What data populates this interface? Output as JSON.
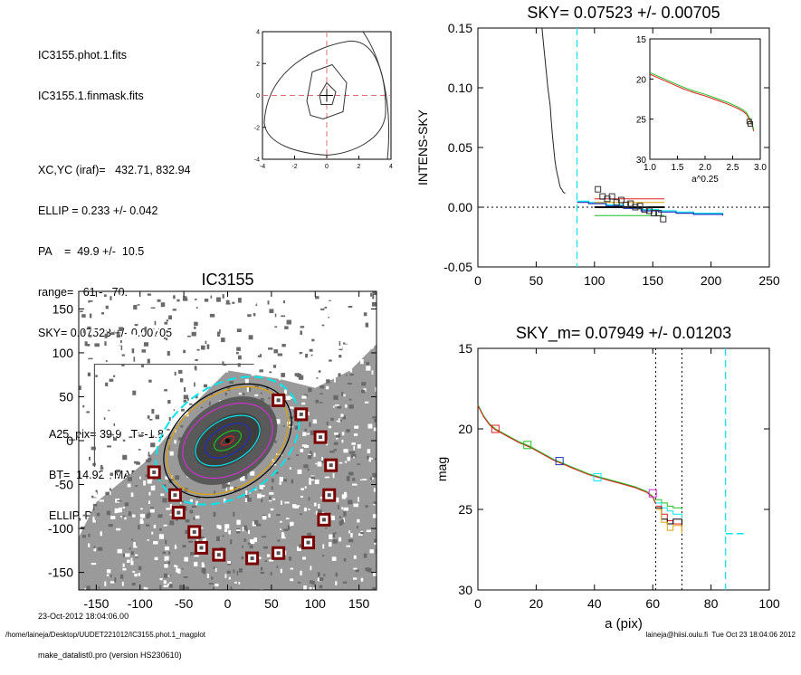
{
  "info": {
    "file1": "IC3155.phot.1.fits",
    "file2": "IC3155.1.finmask.fits",
    "lines": [
      "XC,YC (iraf)=   432.71, 832.94",
      "ELLIP = 0.233 +/- 0.042",
      "PA    =  49.9 +/-  10.5",
      "range=   61.-   70.",
      "SKY= 0.07523 +/- 0.00705"
    ],
    "lines2": [
      "A25_pix= 39.9   T=-1.8",
      "BT=  14.92   MABS=-17.83",
      "ELLIP, PA= 0.542   34.0"
    ],
    "date": "23-Oct-2012 18:04:06.00",
    "program": "make_datalist0.pro (version HS230610)"
  },
  "footer": {
    "path": "/home/laineja/Desktop/UUDET221012/IC3155.phot.1_magplot",
    "user": "laineja@hiisi.oulu.fi  Tue Oct 23 18:04:06 2012"
  },
  "colors": {
    "cyan": "#00e5ee",
    "red": "#e02020",
    "green": "#20c020",
    "blue": "#2030c0",
    "orange": "#e0a000",
    "magenta": "#d030d0",
    "gray": "#8a8a8a",
    "darkred": "#7a0000"
  },
  "chart_data": [
    {
      "id": "contour",
      "type": "contour",
      "xlim": [
        -4,
        4
      ],
      "ylim": [
        -4,
        4
      ],
      "xticks": [
        -4,
        -2,
        0,
        2,
        4
      ],
      "yticks": [
        -4,
        -2,
        0,
        2,
        4
      ],
      "center": [
        0,
        0
      ]
    },
    {
      "id": "sky",
      "type": "line",
      "title": "SKY= 0.07523 +/- 0.00705",
      "ylabel": "INTENS-SKY",
      "xlim": [
        0,
        250
      ],
      "ylim": [
        -0.05,
        0.15
      ],
      "xticks": [
        0,
        50,
        100,
        150,
        200,
        250
      ],
      "yticks": [
        "-0.05",
        "0.00",
        "0.05",
        "0.10",
        "0.15"
      ],
      "profile": [
        [
          54,
          0.16
        ],
        [
          56,
          0.14
        ],
        [
          58,
          0.12
        ],
        [
          60,
          0.1
        ],
        [
          62,
          0.085
        ],
        [
          63,
          0.072
        ],
        [
          64,
          0.06
        ],
        [
          65,
          0.05
        ],
        [
          66,
          0.04
        ],
        [
          67,
          0.033
        ],
        [
          68,
          0.028
        ],
        [
          69,
          0.024
        ],
        [
          70,
          0.019
        ],
        [
          71,
          0.016
        ],
        [
          72,
          0.015
        ],
        [
          73,
          0.013
        ],
        [
          74,
          0.012
        ],
        [
          75,
          0.012
        ]
      ],
      "cyan_vline": 85,
      "squares": [
        [
          103,
          0.015
        ],
        [
          107,
          0.009
        ],
        [
          111,
          0.007
        ],
        [
          115,
          0.009
        ],
        [
          119,
          0.004
        ],
        [
          123,
          0.006
        ],
        [
          127,
          0.002
        ],
        [
          131,
          0.003
        ],
        [
          135,
          0.0
        ],
        [
          139,
          0.001
        ],
        [
          143,
          -0.002
        ],
        [
          147,
          -0.003
        ],
        [
          151,
          -0.005
        ],
        [
          155,
          -0.005
        ],
        [
          159,
          -0.01
        ]
      ],
      "segments": [
        {
          "color": "red",
          "x": [
            100,
            160
          ],
          "y": 0.007
        },
        {
          "color": "orange",
          "x": [
            100,
            160
          ],
          "y": 0.004
        },
        {
          "color": "black",
          "x": [
            100,
            160
          ],
          "y": 0.0
        },
        {
          "color": "green",
          "x": [
            100,
            160
          ],
          "y": -0.007
        }
      ],
      "steps": [
        {
          "color": "cyan",
          "pts": [
            [
              85,
              0.005
            ],
            [
              95,
              0.004
            ],
            [
              110,
              0.002
            ],
            [
              125,
              0.0
            ],
            [
              140,
              -0.002
            ],
            [
              155,
              -0.003
            ],
            [
              170,
              -0.004
            ],
            [
              185,
              -0.005
            ],
            [
              210,
              -0.006
            ]
          ]
        },
        {
          "color": "blue",
          "pts": [
            [
              85,
              0.004
            ],
            [
              95,
              0.003
            ],
            [
              110,
              0.001
            ],
            [
              125,
              -0.001
            ],
            [
              140,
              -0.003
            ],
            [
              155,
              -0.004
            ],
            [
              170,
              -0.005
            ],
            [
              185,
              -0.006
            ],
            [
              210,
              -0.007
            ]
          ]
        }
      ],
      "inset": {
        "xlabel": "a^0.25",
        "xlim": [
          1.0,
          3.0
        ],
        "ylim": [
          15,
          30
        ],
        "xticks": [
          "1.0",
          "1.5",
          "2.0",
          "2.5",
          "3.0"
        ],
        "yticks": [
          "15",
          "20",
          "25",
          "30"
        ],
        "curve": [
          [
            1.0,
            19.2
          ],
          [
            1.2,
            19.8
          ],
          [
            1.4,
            20.4
          ],
          [
            1.6,
            21.0
          ],
          [
            1.8,
            21.5
          ],
          [
            2.0,
            21.9
          ],
          [
            2.2,
            22.4
          ],
          [
            2.4,
            22.9
          ],
          [
            2.6,
            23.5
          ],
          [
            2.7,
            23.9
          ],
          [
            2.75,
            24.2
          ],
          [
            2.8,
            24.8
          ],
          [
            2.85,
            25.5
          ],
          [
            2.88,
            26.3
          ]
        ],
        "squares": [
          [
            2.8,
            25.3
          ],
          [
            2.82,
            25.6
          ]
        ]
      }
    },
    {
      "id": "image",
      "type": "image",
      "title": "IC3155",
      "xlim": [
        -170,
        170
      ],
      "ylim": [
        -170,
        170
      ],
      "xticks": [
        -150,
        -100,
        -50,
        0,
        50,
        100,
        150
      ],
      "yticks": [
        -150,
        -100,
        -50,
        0,
        50,
        100,
        150
      ],
      "masks": [
        [
          -84,
          -36
        ],
        [
          -60,
          -62
        ],
        [
          -56,
          -82
        ],
        [
          -38,
          -104
        ],
        [
          -30,
          -122
        ],
        [
          -10,
          -130
        ],
        [
          28,
          -134
        ],
        [
          58,
          -128
        ],
        [
          92,
          -116
        ],
        [
          110,
          -90
        ],
        [
          116,
          -62
        ],
        [
          118,
          -28
        ],
        [
          106,
          4
        ],
        [
          84,
          30
        ],
        [
          58,
          46
        ]
      ],
      "ellipses": [
        {
          "color": "cyan",
          "dash": true,
          "a": 90,
          "b": 63,
          "pa": -35
        },
        {
          "color": "black",
          "a": 80,
          "b": 56,
          "pa": -35
        },
        {
          "color": "orange",
          "a": 76,
          "b": 53,
          "pa": -35
        },
        {
          "color": "magenta",
          "a": 55,
          "b": 38,
          "pa": -30
        },
        {
          "color": "cyan",
          "a": 40,
          "b": 24,
          "pa": -30
        },
        {
          "color": "blue",
          "a": 28,
          "b": 16,
          "pa": -30
        },
        {
          "color": "green",
          "a": 17,
          "b": 9,
          "pa": -30
        },
        {
          "color": "red",
          "a": 8,
          "b": 4,
          "pa": -30
        }
      ]
    },
    {
      "id": "mag",
      "type": "line",
      "title": "SKY_m=  0.07949 +/- 0.01203",
      "xlabel": "a (pix)",
      "ylabel": "mag",
      "xlim": [
        0,
        100
      ],
      "ylim": [
        30,
        15
      ],
      "xticks": [
        0,
        20,
        40,
        60,
        80,
        100
      ],
      "yticks": [
        15,
        20,
        25,
        30
      ],
      "vlines_dotted": [
        61,
        70
      ],
      "cyan_vline": 85,
      "cyan_hsegment": {
        "x": [
          85,
          92
        ],
        "y": 26.5
      },
      "profile": [
        [
          0,
          18.5
        ],
        [
          2,
          19.2
        ],
        [
          4,
          19.7
        ],
        [
          6,
          20.0
        ],
        [
          10,
          20.4
        ],
        [
          14,
          20.8
        ],
        [
          18,
          21.1
        ],
        [
          22,
          21.5
        ],
        [
          26,
          21.9
        ],
        [
          30,
          22.2
        ],
        [
          34,
          22.5
        ],
        [
          38,
          22.8
        ],
        [
          42,
          23.0
        ],
        [
          46,
          23.2
        ],
        [
          50,
          23.4
        ],
        [
          54,
          23.6
        ],
        [
          58,
          23.9
        ],
        [
          60,
          24.2
        ],
        [
          61,
          24.6
        ]
      ],
      "tails": [
        {
          "color": "green",
          "pts": [
            [
              61,
              24.4
            ],
            [
              63,
              24.6
            ],
            [
              65,
              24.8
            ],
            [
              67,
              24.9
            ],
            [
              70,
              25.0
            ]
          ]
        },
        {
          "color": "cyan",
          "pts": [
            [
              61,
              24.6
            ],
            [
              63,
              24.9
            ],
            [
              65,
              25.1
            ],
            [
              67,
              25.3
            ],
            [
              70,
              25.5
            ]
          ]
        },
        {
          "color": "red",
          "pts": [
            [
              61,
              24.8
            ],
            [
              63,
              25.3
            ],
            [
              65,
              25.7
            ],
            [
              67,
              25.9
            ],
            [
              70,
              26.0
            ]
          ]
        },
        {
          "color": "black",
          "pts": [
            [
              61,
              24.9
            ],
            [
              63,
              25.6
            ],
            [
              65,
              25.9
            ],
            [
              67,
              25.6
            ],
            [
              70,
              26.2
            ]
          ]
        },
        {
          "color": "orange",
          "pts": [
            [
              61,
              25.0
            ],
            [
              63,
              25.8
            ],
            [
              65,
              26.3
            ],
            [
              67,
              26.0
            ],
            [
              70,
              26.5
            ]
          ]
        }
      ],
      "markers": [
        {
          "color": "red",
          "x": 6,
          "y": 20.0
        },
        {
          "color": "green",
          "x": 17,
          "y": 21.0
        },
        {
          "color": "blue",
          "x": 28,
          "y": 22.0
        },
        {
          "color": "cyan",
          "x": 41,
          "y": 23.0
        },
        {
          "color": "magenta",
          "x": 60,
          "y": 24.0
        }
      ]
    }
  ]
}
